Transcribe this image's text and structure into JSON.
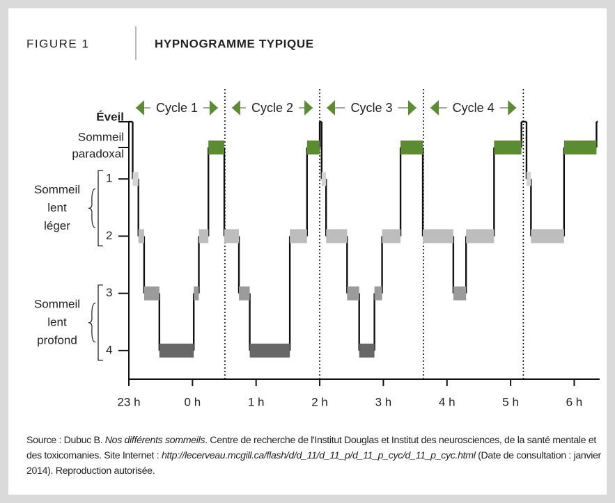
{
  "chart_data": {
    "type": "hypnogram",
    "figure": "FIGURE 1",
    "title": "HYPNOGRAMME TYPIQUE",
    "xlim": [
      0,
      7.4
    ],
    "ylim": [
      4.5,
      0
    ],
    "xticks": [
      {
        "value": 0,
        "label": "23 h"
      },
      {
        "value": 1,
        "label": "0 h"
      },
      {
        "value": 2,
        "label": "1 h"
      },
      {
        "value": 3,
        "label": "2 h"
      },
      {
        "value": 4,
        "label": "3 h"
      },
      {
        "value": 5,
        "label": "4 h"
      },
      {
        "value": 6,
        "label": "5 h"
      },
      {
        "value": 7,
        "label": "6 h"
      }
    ],
    "yticks": [
      {
        "value": 0,
        "label": "Éveil"
      },
      {
        "value": 0.45,
        "label": [
          "Sommeil",
          "paradoxal"
        ]
      },
      1,
      2,
      3,
      4
    ],
    "tick_colors": [
      null,
      "#5b8c32",
      "#d4d4d4",
      "#bdbdbd",
      "#9b9b9b",
      "#676767"
    ],
    "groups": [
      {
        "lines": [
          "Sommeil",
          "lent",
          "léger"
        ],
        "from": 1,
        "to": 2
      },
      {
        "lines": [
          "Sommeil",
          "lent",
          "profond"
        ],
        "from": 3,
        "to": 4
      }
    ],
    "cycles": [
      {
        "label": "Cycle 1",
        "start": 0,
        "end": 1.51
      },
      {
        "label": "Cycle 2",
        "start": 1.51,
        "end": 3.0
      },
      {
        "label": "Cycle 3",
        "start": 3.0,
        "end": 4.63
      },
      {
        "label": "Cycle 4",
        "start": 4.63,
        "end": 6.2
      }
    ],
    "cycle_color": "#5b8c32",
    "series": [
      {
        "x": [
          0,
          0.06,
          0.15,
          0.24,
          0.48,
          1.02,
          1.1,
          1.25,
          1.5,
          1.73,
          1.9,
          2.53,
          2.8,
          3.0,
          3.03,
          3.1,
          3.43,
          3.62,
          3.86,
          3.98,
          4.27,
          4.62,
          5.1,
          5.3,
          5.74,
          6.17,
          6.25,
          6.32,
          6.84,
          7.35
        ],
        "values": [
          0,
          1,
          2,
          3,
          4,
          3,
          2,
          0.45,
          2,
          3,
          4,
          2,
          0.45,
          0,
          1,
          2,
          3,
          4,
          3,
          2,
          0.45,
          2,
          3,
          2,
          0.45,
          0,
          1,
          2,
          0.45,
          0
        ],
        "color": "#111111"
      }
    ],
    "source_parts": [
      {
        "text": "Source : Dubuc B. ",
        "italic": false
      },
      {
        "text": "Nos différents sommeils",
        "italic": true
      },
      {
        "text": ". Centre de recherche de l'Institut Douglas et Institut des neurosciences, de la santé mentale et des toxicomanies. Site Internet : ",
        "italic": false
      },
      {
        "text": "http://lecerveau.mcgill.ca/flash/d/d_11/d_11_p/d_11_p_cyc/d_11_p_cyc.html",
        "italic": true
      },
      {
        "text": " (Date de consultation : janvier 2014). Reproduction autorisée.",
        "italic": false
      }
    ]
  }
}
